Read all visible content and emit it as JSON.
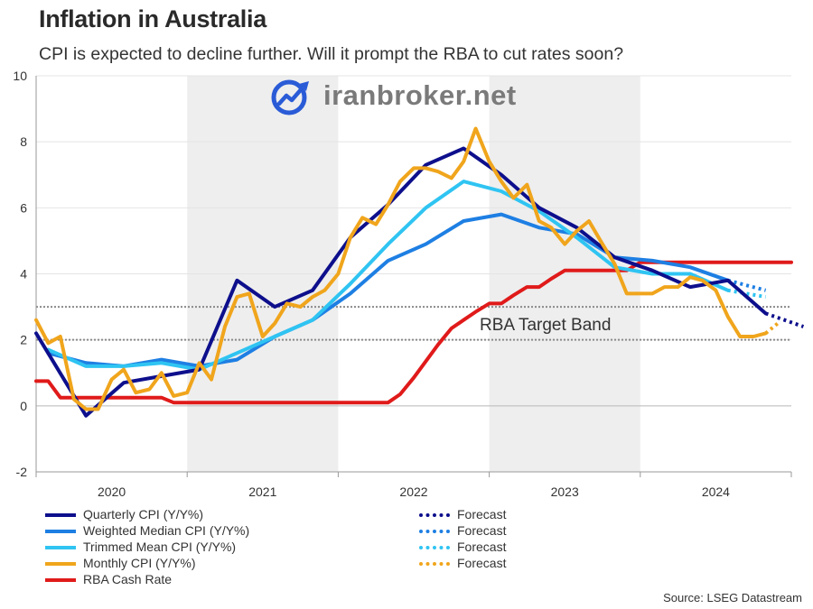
{
  "title": "Inflation in Australia",
  "subtitle": "CPI is expected to decline further. Will it prompt the RBA to cut rates soon?",
  "source": "Source: LSEG Datastream",
  "watermark": "iranbroker.net",
  "annotation": "RBA Target Band",
  "colors": {
    "quarterly": "#0d0f8c",
    "weighted": "#1e7fe3",
    "trimmed": "#2fc4f2",
    "monthly": "#f0a51c",
    "cash": "#e01a1a",
    "band": "#8a8a8a",
    "shade": "#eeeeee"
  },
  "legend": [
    {
      "label": "Quarterly CPI (Y/Y%)",
      "color": "#0d0f8c",
      "style": "solid"
    },
    {
      "label": "Weighted Median CPI (Y/Y%)",
      "color": "#1e7fe3",
      "style": "solid"
    },
    {
      "label": "Trimmed Mean CPI (Y/Y%)",
      "color": "#2fc4f2",
      "style": "solid"
    },
    {
      "label": "Monthly CPI (Y/Y%)",
      "color": "#f0a51c",
      "style": "solid"
    },
    {
      "label": "RBA Cash Rate",
      "color": "#e01a1a",
      "style": "solid"
    },
    {
      "label": "Forecast",
      "color": "#0d0f8c",
      "style": "dotted"
    },
    {
      "label": "Forecast",
      "color": "#1e7fe3",
      "style": "dotted"
    },
    {
      "label": "Forecast",
      "color": "#2fc4f2",
      "style": "dotted"
    },
    {
      "label": "Forecast",
      "color": "#f0a51c",
      "style": "dotted"
    }
  ],
  "chart_data": {
    "type": "line",
    "x_unit": "year",
    "xlim": [
      2019.5,
      2024.5
    ],
    "ylim": [
      -2,
      10
    ],
    "yticks": [
      -2,
      0,
      2,
      4,
      6,
      8,
      10
    ],
    "xtick_labels": [
      "2020",
      "2021",
      "2022",
      "2023",
      "2024"
    ],
    "xtick_positions": [
      2020,
      2021,
      2022,
      2023,
      2024
    ],
    "target_band": [
      2,
      3
    ],
    "annotation_text": "RBA Target Band",
    "grid": true,
    "legend_position": "bottom",
    "series": [
      {
        "key": "quarterly",
        "name": "Quarterly CPI (Y/Y%)",
        "points": [
          [
            2019.5,
            2.2
          ],
          [
            2019.83,
            -0.3
          ],
          [
            2020.08,
            0.7
          ],
          [
            2020.33,
            0.9
          ],
          [
            2020.58,
            1.1
          ],
          [
            2020.83,
            3.8
          ],
          [
            2021.08,
            3.0
          ],
          [
            2021.33,
            3.5
          ],
          [
            2021.58,
            5.1
          ],
          [
            2021.83,
            6.1
          ],
          [
            2022.08,
            7.3
          ],
          [
            2022.33,
            7.8
          ],
          [
            2022.58,
            7.0
          ],
          [
            2022.83,
            6.0
          ],
          [
            2023.08,
            5.4
          ],
          [
            2023.33,
            4.5
          ],
          [
            2023.58,
            4.1
          ],
          [
            2023.83,
            3.6
          ],
          [
            2024.08,
            3.8
          ],
          [
            2024.33,
            2.8
          ]
        ],
        "forecast": [
          [
            2024.33,
            2.8
          ],
          [
            2024.58,
            2.4
          ]
        ]
      },
      {
        "key": "weighted",
        "name": "Weighted Median CPI (Y/Y%)",
        "points": [
          [
            2019.58,
            1.6
          ],
          [
            2019.83,
            1.3
          ],
          [
            2020.08,
            1.2
          ],
          [
            2020.33,
            1.4
          ],
          [
            2020.58,
            1.2
          ],
          [
            2020.83,
            1.4
          ],
          [
            2021.08,
            2.1
          ],
          [
            2021.33,
            2.6
          ],
          [
            2021.58,
            3.4
          ],
          [
            2021.83,
            4.4
          ],
          [
            2022.08,
            4.9
          ],
          [
            2022.33,
            5.6
          ],
          [
            2022.58,
            5.8
          ],
          [
            2022.83,
            5.4
          ],
          [
            2023.08,
            5.2
          ],
          [
            2023.33,
            4.5
          ],
          [
            2023.58,
            4.4
          ],
          [
            2023.83,
            4.2
          ],
          [
            2024.08,
            3.8
          ]
        ],
        "forecast": [
          [
            2024.08,
            3.8
          ],
          [
            2024.33,
            3.5
          ]
        ]
      },
      {
        "key": "trimmed",
        "name": "Trimmed Mean CPI (Y/Y%)",
        "points": [
          [
            2019.58,
            1.7
          ],
          [
            2019.83,
            1.2
          ],
          [
            2020.08,
            1.2
          ],
          [
            2020.33,
            1.3
          ],
          [
            2020.58,
            1.1
          ],
          [
            2020.83,
            1.6
          ],
          [
            2021.08,
            2.1
          ],
          [
            2021.33,
            2.6
          ],
          [
            2021.58,
            3.7
          ],
          [
            2021.83,
            4.9
          ],
          [
            2022.08,
            6.0
          ],
          [
            2022.33,
            6.8
          ],
          [
            2022.58,
            6.5
          ],
          [
            2022.83,
            5.9
          ],
          [
            2023.08,
            5.1
          ],
          [
            2023.33,
            4.2
          ],
          [
            2023.58,
            4.0
          ],
          [
            2023.83,
            4.0
          ],
          [
            2024.08,
            3.5
          ]
        ],
        "forecast": [
          [
            2024.08,
            3.5
          ],
          [
            2024.33,
            3.3
          ]
        ]
      },
      {
        "key": "monthly",
        "name": "Monthly CPI (Y/Y%)",
        "points": [
          [
            2019.5,
            2.6
          ],
          [
            2019.58,
            1.9
          ],
          [
            2019.66,
            2.1
          ],
          [
            2019.75,
            0.2
          ],
          [
            2019.83,
            -0.1
          ],
          [
            2019.91,
            -0.1
          ],
          [
            2020.0,
            0.8
          ],
          [
            2020.08,
            1.1
          ],
          [
            2020.16,
            0.4
          ],
          [
            2020.25,
            0.5
          ],
          [
            2020.33,
            1.0
          ],
          [
            2020.41,
            0.3
          ],
          [
            2020.5,
            0.4
          ],
          [
            2020.58,
            1.3
          ],
          [
            2020.66,
            0.8
          ],
          [
            2020.75,
            2.4
          ],
          [
            2020.83,
            3.3
          ],
          [
            2020.91,
            3.4
          ],
          [
            2021.0,
            2.1
          ],
          [
            2021.08,
            2.5
          ],
          [
            2021.16,
            3.1
          ],
          [
            2021.25,
            3.0
          ],
          [
            2021.33,
            3.3
          ],
          [
            2021.41,
            3.5
          ],
          [
            2021.5,
            4.0
          ],
          [
            2021.58,
            5.1
          ],
          [
            2021.66,
            5.7
          ],
          [
            2021.75,
            5.5
          ],
          [
            2021.83,
            6.1
          ],
          [
            2021.91,
            6.8
          ],
          [
            2022.0,
            7.2
          ],
          [
            2022.08,
            7.2
          ],
          [
            2022.16,
            7.1
          ],
          [
            2022.25,
            6.9
          ],
          [
            2022.33,
            7.4
          ],
          [
            2022.41,
            8.4
          ],
          [
            2022.5,
            7.4
          ],
          [
            2022.58,
            6.8
          ],
          [
            2022.66,
            6.3
          ],
          [
            2022.75,
            6.7
          ],
          [
            2022.83,
            5.6
          ],
          [
            2022.91,
            5.4
          ],
          [
            2023.0,
            4.9
          ],
          [
            2023.08,
            5.3
          ],
          [
            2023.16,
            5.6
          ],
          [
            2023.25,
            4.9
          ],
          [
            2023.33,
            4.3
          ],
          [
            2023.41,
            3.4
          ],
          [
            2023.5,
            3.4
          ],
          [
            2023.58,
            3.4
          ],
          [
            2023.66,
            3.6
          ],
          [
            2023.75,
            3.6
          ],
          [
            2023.83,
            3.9
          ],
          [
            2023.91,
            3.8
          ],
          [
            2024.0,
            3.5
          ],
          [
            2024.08,
            2.7
          ],
          [
            2024.16,
            2.1
          ],
          [
            2024.25,
            2.1
          ],
          [
            2024.33,
            2.2
          ]
        ],
        "forecast": [
          [
            2024.33,
            2.2
          ],
          [
            2024.41,
            2.5
          ]
        ]
      },
      {
        "key": "cash",
        "name": "RBA Cash Rate",
        "points": [
          [
            2019.5,
            0.75
          ],
          [
            2019.58,
            0.75
          ],
          [
            2019.66,
            0.25
          ],
          [
            2020.33,
            0.25
          ],
          [
            2020.41,
            0.1
          ],
          [
            2021.83,
            0.1
          ],
          [
            2021.91,
            0.35
          ],
          [
            2022.0,
            0.85
          ],
          [
            2022.08,
            1.35
          ],
          [
            2022.16,
            1.85
          ],
          [
            2022.25,
            2.35
          ],
          [
            2022.33,
            2.6
          ],
          [
            2022.41,
            2.85
          ],
          [
            2022.5,
            3.1
          ],
          [
            2022.58,
            3.1
          ],
          [
            2022.66,
            3.35
          ],
          [
            2022.75,
            3.6
          ],
          [
            2022.83,
            3.6
          ],
          [
            2022.91,
            3.85
          ],
          [
            2023.0,
            4.1
          ],
          [
            2023.41,
            4.1
          ],
          [
            2023.5,
            4.35
          ],
          [
            2024.5,
            4.35
          ]
        ]
      }
    ]
  }
}
